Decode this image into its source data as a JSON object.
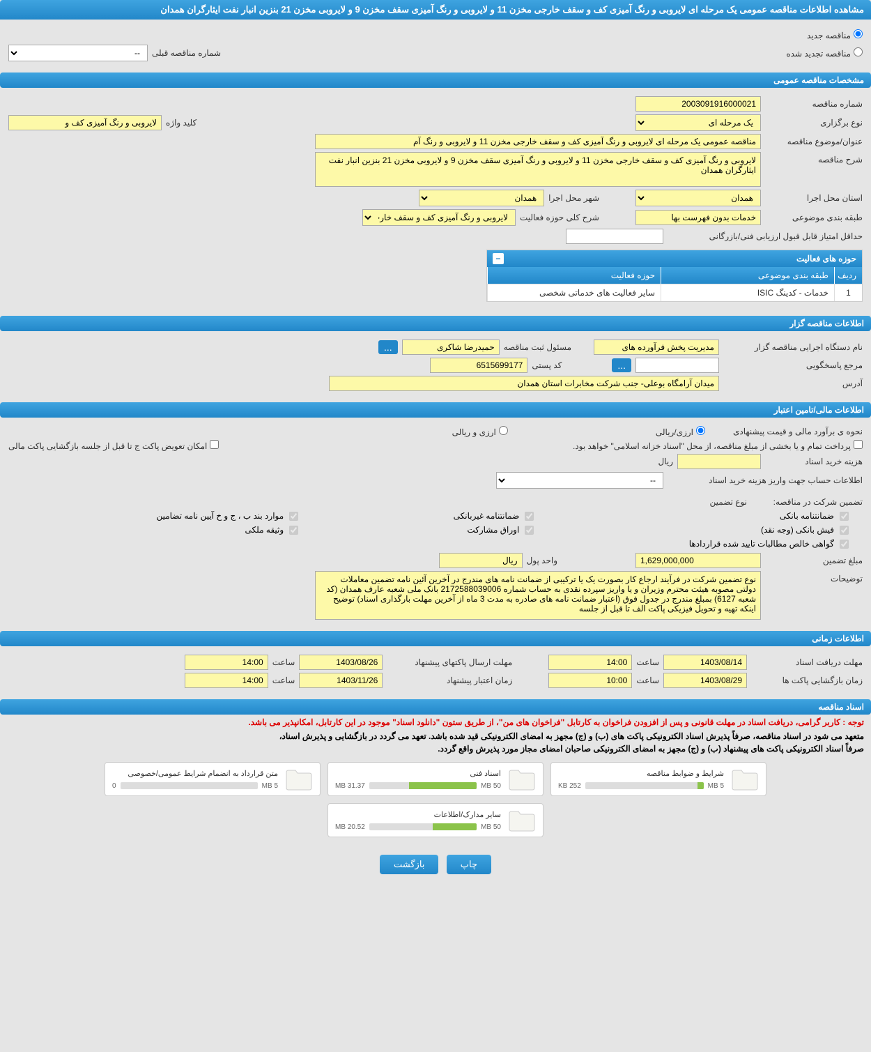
{
  "header": {
    "title": "مشاهده اطلاعات مناقصه عمومی یک مرحله ای لایروبی و رنگ آمیزی کف و سقف خارجی مخزن 11 و لایروبی و رنگ آمیزی سقف مخزن 9 و لایروبی مخزن 21 بنزین انبار نفت ایثارگران همدان"
  },
  "tender_type": {
    "new_label": "مناقصه جدید",
    "renewed_label": "مناقصه تجدید شده",
    "prev_number_label": "شماره مناقصه قبلی",
    "prev_number_value": "--"
  },
  "sections": {
    "general": "مشخصات مناقصه عمومی",
    "organizer": "اطلاعات مناقصه گزار",
    "financial": "اطلاعات مالی/تامین اعتبار",
    "timing": "اطلاعات زمانی",
    "documents": "اسناد مناقصه"
  },
  "general": {
    "number_label": "شماره مناقصه",
    "number_value": "2003091916000021",
    "type_label": "نوع برگزاری",
    "type_value": "یک مرحله ای",
    "keyword_label": "کلید واژه",
    "keyword_value": "لایروبی و رنگ آمیزی کف و",
    "subject_label": "عنوان/موضوع مناقصه",
    "subject_value": "مناقصه عمومی یک مرحله ای لایروبی و رنگ آمیزی کف و سقف خارجی مخزن 11 و لایروبی و رنگ آم",
    "desc_label": "شرح مناقصه",
    "desc_value": "لایروبی و رنگ آمیزی کف و سقف خارجی مخزن 11 و لایروبی و رنگ آمیزی سقف مخزن 9 و لایروبی مخزن 21 بنزین انبار نفت ایثارگران همدان",
    "province_label": "استان محل اجرا",
    "province_value": "همدان",
    "city_label": "شهر محل اجرا",
    "city_value": "همدان",
    "category_label": "طبقه بندی موضوعی",
    "category_value": "خدمات بدون فهرست بها",
    "activity_desc_label": "شرح کلی حوزه فعالیت",
    "activity_desc_value": "لایروبی و رنگ آمیزی کف و سقف خارجی مخزن 11 و",
    "min_score_label": "حداقل امتیاز قابل قبول ارزیابی فنی/بازرگانی",
    "min_score_value": ""
  },
  "activity_table": {
    "title": "حوزه های فعالیت",
    "col_idx": "ردیف",
    "col_cat": "طبقه بندی موضوعی",
    "col_act": "حوزه فعالیت",
    "rows": [
      {
        "idx": "1",
        "cat": "خدمات - کدینگ ISIC",
        "act": "سایر فعالیت های خدماتی شخصی"
      }
    ]
  },
  "organizer": {
    "exec_label": "نام دستگاه اجرایی مناقصه گزار",
    "exec_value": "مدیریت پخش فرآورده های",
    "reg_resp_label": "مسئول ثبت مناقصه",
    "reg_resp_value": "حمیدرضا شاکری",
    "contact_label": "مرجع پاسخگویی",
    "contact_value": "",
    "postal_label": "کد پستی",
    "postal_value": "6515699177",
    "address_label": "آدرس",
    "address_value": "میدان آرامگاه بوعلی- جنب شرکت مخابرات استان همدان"
  },
  "financial": {
    "estimate_label": "نحوه ی برآورد مالی و قیمت پیشنهادی",
    "currency_rial": "ارزی/ریالی",
    "currency_foreign": "ارزی و ریالی",
    "payment_note": "پرداخت تمام و یا بخشی از مبلغ مناقصه، از محل \"اسناد خزانه اسلامی\" خواهد بود.",
    "swap_label": "امکان تعویض پاکت ج تا قبل از جلسه بازگشایی پاکت مالی",
    "doc_cost_label": "هزینه خرید اسناد",
    "doc_cost_value": "",
    "rial_label": "ریال",
    "account_label": "اطلاعات حساب جهت واریز هزینه خرید اسناد",
    "account_value": "--",
    "guarantee_label": "تضمین شرکت در مناقصه:",
    "guarantee_type_label": "نوع تضمین",
    "g1": "ضمانتنامه بانکی",
    "g2": "ضمانتنامه غیربانکی",
    "g3": "موارد بند ب ، ج و خ آیین نامه تضامین",
    "g4": "فیش بانکی (وجه نقد)",
    "g5": "اوراق مشارکت",
    "g6": "وثیقه ملکی",
    "g7": "گواهی خالص مطالبات تایید شده قراردادها",
    "amount_label": "مبلغ تضمین",
    "amount_value": "1,629,000,000",
    "unit_label": "واحد پول",
    "unit_value": "ریال",
    "notes_label": "توضیحات",
    "notes_value": "نوع تضمین شرکت در فرآیند ارجاع کار بصورت یک یا ترکیبی از ضمانت نامه های مندرج در آخرین آئین نامه تضمین معاملات دولتی مصوبه هیئت محترم وزیران و یا واریز سپرده نقدی به حساب شماره 2172588039006 بانک ملی شعبه عارف همدان (کد شعبه 6127) بمبلغ مندرج در جدول فوق (اعتبار ضمانت نامه های صادره به مدت 3 ماه از آخرین مهلت بارگذاری اسناد) توضیح اینکه تهیه و تحویل فیزیکی پاکت الف تا قبل از جلسه"
  },
  "timing": {
    "receive_label": "مهلت دریافت اسناد",
    "receive_date": "1403/08/14",
    "receive_time_label": "ساعت",
    "receive_time": "14:00",
    "send_label": "مهلت ارسال پاکتهای پیشنهاد",
    "send_date": "1403/08/26",
    "send_time": "14:00",
    "open_label": "زمان بازگشایی پاکت ها",
    "open_date": "1403/08/29",
    "open_time": "10:00",
    "credit_label": "زمان اعتبار پیشنهاد",
    "credit_date": "1403/11/26",
    "credit_time": "14:00"
  },
  "documents": {
    "note_red": "توجه : کاربر گرامی، دریافت اسناد در مهلت قانونی و پس از افزودن فراخوان به کارتابل \"فراخوان های من\"، از طریق ستون \"دانلود اسناد\" موجود در این کارتابل، امکانپذیر می باشد.",
    "note1": "متعهد می شود در اسناد مناقصه، صرفاً پذیرش اسناد الکترونیکی پاکت های (ب) و (ج) مجهز به امضای الکترونیکی قید شده باشد. تعهد می گردد در بازگشایی و پذیرش اسناد،",
    "note2": "صرفاً اسناد الکترونیکی پاکت های پیشنهاد (ب) و (ج) مجهز به امضای الکترونیکی صاحبان امضای مجاز مورد پذیرش واقع گردد.",
    "items": [
      {
        "title": "شرایط و ضوابط مناقصه",
        "used": "252 KB",
        "total": "5 MB",
        "pct": 5
      },
      {
        "title": "اسناد فنی",
        "used": "31.37 MB",
        "total": "50 MB",
        "pct": 63
      },
      {
        "title": "متن قرارداد به انضمام شرایط عمومی/خصوصی",
        "used": "0",
        "total": "5 MB",
        "pct": 0
      },
      {
        "title": "سایر مدارک/اطلاعات",
        "used": "20.52 MB",
        "total": "50 MB",
        "pct": 41
      }
    ]
  },
  "buttons": {
    "print": "چاپ",
    "back": "بازگشت",
    "more": "..."
  },
  "colors": {
    "header_bg": "#2287c9",
    "field_bg": "#fdf9a8",
    "progress_fill": "#8bc34a"
  }
}
